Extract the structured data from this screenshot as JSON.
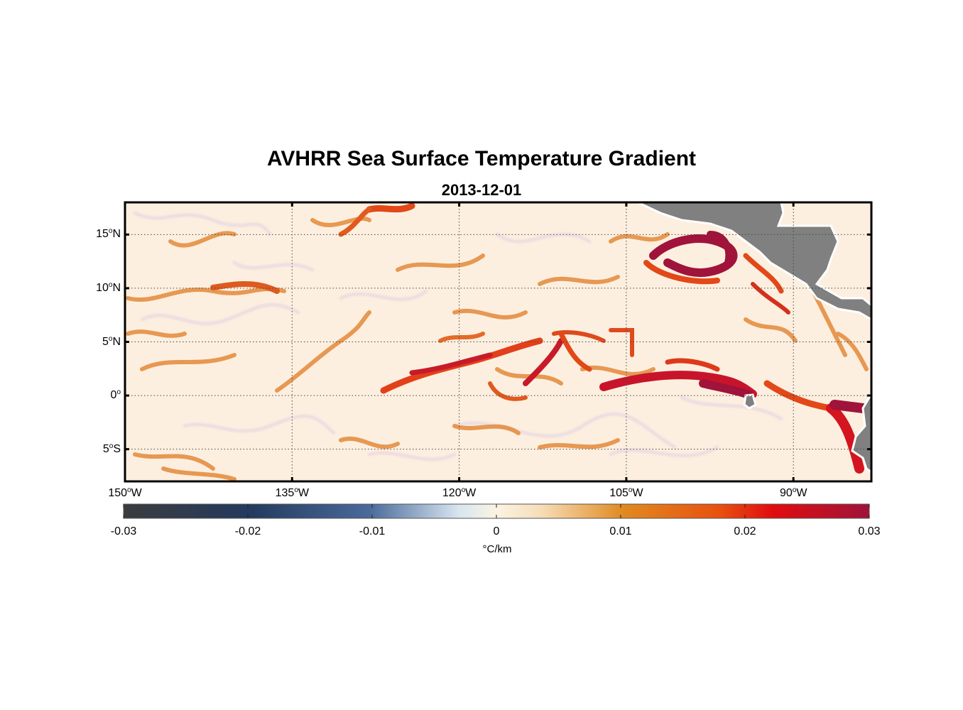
{
  "title": "AVHRR Sea Surface Temperature Gradient",
  "subtitle": "2013-12-01",
  "map": {
    "lon_range": [
      -150,
      -83
    ],
    "lat_range": [
      -8,
      18
    ],
    "lat_ticks": [
      {
        "value": 15,
        "deg": "15",
        "hemi": "N"
      },
      {
        "value": 10,
        "deg": "10",
        "hemi": "N"
      },
      {
        "value": 5,
        "deg": "5",
        "hemi": "N"
      },
      {
        "value": 0,
        "deg": "0",
        "hemi": ""
      },
      {
        "value": -5,
        "deg": "5",
        "hemi": "S"
      }
    ],
    "lon_ticks": [
      {
        "value": -150,
        "deg": "150",
        "hemi": "W"
      },
      {
        "value": -135,
        "deg": "135",
        "hemi": "W"
      },
      {
        "value": -120,
        "deg": "120",
        "hemi": "W"
      },
      {
        "value": -105,
        "deg": "105",
        "hemi": "W"
      },
      {
        "value": -90,
        "deg": "90",
        "hemi": "W"
      }
    ],
    "gridlines": "dotted",
    "land_color": "#808080"
  },
  "colorbar": {
    "range": [
      -0.03,
      0.03
    ],
    "ticks": [
      "-0.03",
      "-0.02",
      "-0.01",
      "0",
      "0.01",
      "0.02",
      "0.03"
    ],
    "unit": "°C/km",
    "colors": [
      "#3a3c3e",
      "#243a5e",
      "#4a6a9a",
      "#d8e6f0",
      "#fbf0d8",
      "#e08a20",
      "#e85010",
      "#e00d10",
      "#a0133a"
    ]
  }
}
